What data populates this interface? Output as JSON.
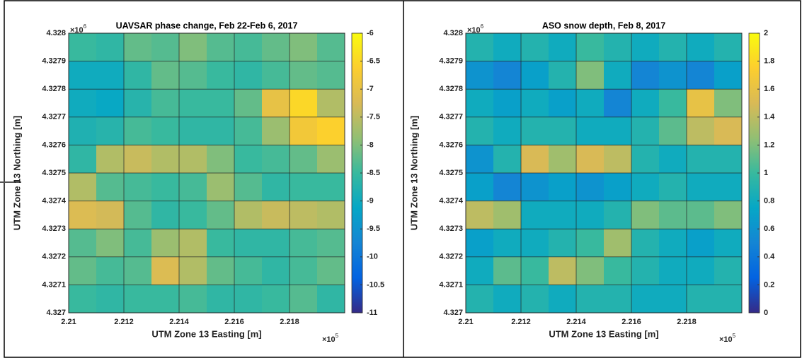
{
  "chart_data": [
    {
      "type": "heatmap",
      "title": "UAVSAR phase change, Feb 22-Feb 6, 2017",
      "x_label": "UTM Zone 13 Easting [m]",
      "y_label": "UTM Zone 13 Northing [m]",
      "x_multiplier": "×10",
      "x_power": "5",
      "y_multiplier": "×10",
      "y_power": "6",
      "xlim": [
        2.21,
        2.22
      ],
      "ylim": [
        4.327,
        4.328
      ],
      "xticks": [
        2.21,
        2.212,
        2.214,
        2.216,
        2.218
      ],
      "yticks": [
        4.327,
        4.3271,
        4.3272,
        4.3273,
        4.3274,
        4.3275,
        4.3276,
        4.3277,
        4.3278,
        4.3279,
        4.328
      ],
      "grid": true,
      "colormap": "parula",
      "clim": [
        -11,
        -6
      ],
      "cticks": [
        -11,
        -10.5,
        -10,
        -9.5,
        -9,
        -8.5,
        -8,
        -7.5,
        -7,
        -6.5,
        -6
      ],
      "z": [
        [
          -8.5,
          -8.6,
          -8.2,
          -8.3,
          -8.0,
          -8.3,
          -8.4,
          -8.2,
          -8.0,
          -8.3
        ],
        [
          -9.0,
          -9.0,
          -8.6,
          -8.2,
          -8.3,
          -8.5,
          -8.6,
          -8.4,
          -8.2,
          -8.3
        ],
        [
          -9.0,
          -9.1,
          -8.7,
          -8.4,
          -8.5,
          -8.5,
          -8.2,
          -7.0,
          -6.5,
          -7.6
        ],
        [
          -8.8,
          -8.7,
          -8.4,
          -8.5,
          -8.6,
          -8.6,
          -8.4,
          -7.8,
          -6.8,
          -6.6
        ],
        [
          -8.6,
          -7.6,
          -7.4,
          -7.6,
          -7.6,
          -8.0,
          -8.5,
          -8.4,
          -8.2,
          -7.8
        ],
        [
          -7.6,
          -8.3,
          -8.4,
          -8.5,
          -8.4,
          -7.8,
          -8.3,
          -8.6,
          -8.5,
          -8.5
        ],
        [
          -7.2,
          -7.3,
          -8.3,
          -8.6,
          -8.5,
          -8.2,
          -7.6,
          -7.4,
          -7.5,
          -7.6
        ],
        [
          -8.3,
          -8.0,
          -8.4,
          -7.8,
          -7.6,
          -8.5,
          -8.6,
          -8.6,
          -8.4,
          -8.3
        ],
        [
          -8.2,
          -8.4,
          -8.3,
          -7.2,
          -7.6,
          -8.2,
          -8.4,
          -8.6,
          -8.4,
          -8.2
        ],
        [
          -8.5,
          -8.6,
          -8.5,
          -8.5,
          -8.4,
          -8.6,
          -8.6,
          -8.5,
          -8.3,
          -8.6
        ]
      ]
    },
    {
      "type": "heatmap",
      "title": "ASO snow depth, Feb 8, 2017",
      "x_label": "UTM Zone 13 Easting [m]",
      "y_label": "UTM Zone 13 Northing [m]",
      "x_multiplier": "×10",
      "x_power": "5",
      "y_multiplier": "×10",
      "y_power": "6",
      "xlim": [
        2.21,
        2.22
      ],
      "ylim": [
        4.327,
        4.328
      ],
      "xticks": [
        2.21,
        2.212,
        2.214,
        2.216,
        2.218
      ],
      "yticks": [
        4.327,
        4.3271,
        4.3272,
        4.3273,
        4.3274,
        4.3275,
        4.3276,
        4.3277,
        4.3278,
        4.3279,
        4.328
      ],
      "grid": true,
      "colormap": "parula",
      "clim": [
        0,
        2
      ],
      "cticks": [
        0,
        0.2,
        0.4,
        0.6,
        0.8,
        1,
        1.2,
        1.4,
        1.6,
        1.8,
        2
      ],
      "z": [
        [
          0.9,
          0.8,
          0.9,
          0.8,
          1.0,
          0.9,
          0.8,
          0.9,
          0.8,
          0.9
        ],
        [
          0.6,
          0.5,
          0.7,
          0.9,
          1.2,
          0.8,
          0.5,
          0.6,
          0.5,
          0.7
        ],
        [
          0.8,
          0.7,
          0.8,
          0.7,
          0.8,
          0.5,
          0.8,
          1.0,
          1.6,
          1.2
        ],
        [
          0.9,
          0.8,
          0.9,
          0.9,
          0.8,
          0.8,
          0.9,
          1.1,
          1.4,
          1.5
        ],
        [
          0.6,
          0.9,
          1.5,
          1.3,
          1.5,
          1.4,
          0.9,
          0.8,
          0.9,
          0.9
        ],
        [
          0.7,
          0.5,
          0.6,
          0.7,
          0.6,
          0.7,
          0.8,
          0.9,
          0.8,
          0.8
        ],
        [
          1.4,
          1.3,
          0.8,
          0.8,
          0.8,
          0.9,
          1.2,
          1.1,
          1.1,
          1.2
        ],
        [
          0.7,
          0.8,
          0.8,
          0.9,
          1.0,
          1.3,
          0.9,
          0.8,
          0.7,
          0.8
        ],
        [
          0.8,
          1.1,
          1.0,
          1.4,
          1.2,
          1.0,
          0.9,
          0.8,
          0.8,
          0.9
        ],
        [
          0.9,
          0.8,
          0.9,
          0.8,
          0.9,
          0.9,
          0.8,
          0.8,
          0.9,
          0.9
        ]
      ]
    }
  ]
}
